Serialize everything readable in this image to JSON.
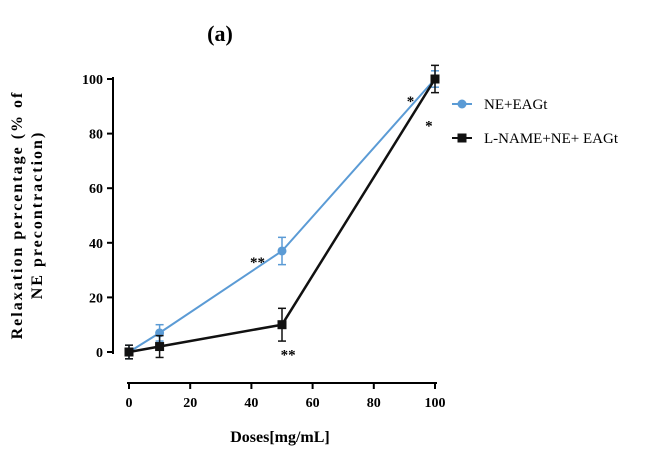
{
  "chart_data": {
    "type": "line",
    "panel_label": "(a)",
    "xlabel": "Doses[mg/mL]",
    "ylabel_lines": [
      "Relaxation percentage (% of",
      "NE precontraction)"
    ],
    "xlim": [
      0,
      100
    ],
    "ylim": [
      0,
      100
    ],
    "xticks": [
      0,
      20,
      40,
      60,
      80,
      100
    ],
    "yticks": [
      0,
      20,
      40,
      60,
      80,
      100
    ],
    "grid": false,
    "legend_position": "right",
    "series": [
      {
        "name": "NE+EAGt",
        "color": "#5b9bd5",
        "marker": "circle",
        "x": [
          0,
          10,
          50,
          100
        ],
        "y": [
          0,
          7,
          37,
          100
        ],
        "err": [
          2.5,
          3,
          5,
          3
        ]
      },
      {
        "name": "L-NAME+NE+ EAGt",
        "color": "#111111",
        "marker": "square",
        "x": [
          0,
          10,
          50,
          100
        ],
        "y": [
          0,
          2,
          10,
          100
        ],
        "err": [
          2.5,
          4,
          6,
          5
        ]
      }
    ],
    "annotations": [
      {
        "text": "**",
        "x": 42,
        "y": 33
      },
      {
        "text": "**",
        "x": 52,
        "y": -1
      },
      {
        "text": "*",
        "x": 92,
        "y": 92
      },
      {
        "text": "*",
        "x": 98,
        "y": 83
      }
    ]
  }
}
